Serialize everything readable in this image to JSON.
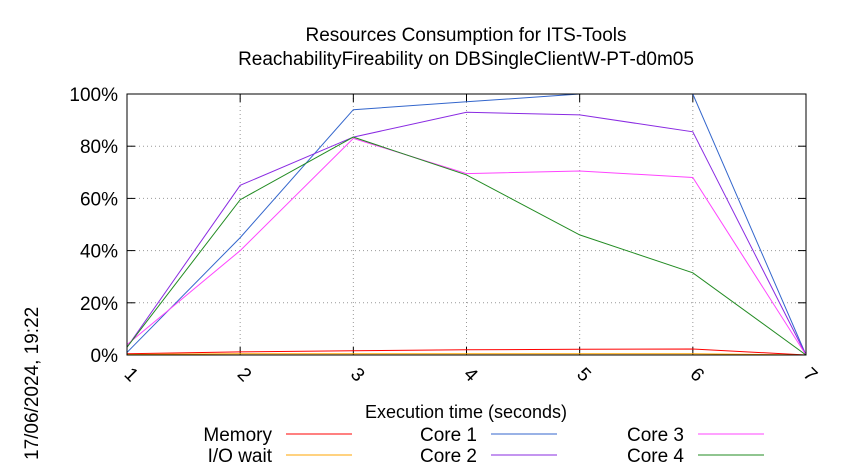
{
  "chart_data": {
    "type": "line",
    "title": [
      "Resources Consumption for ITS-Tools",
      "ReachabilityFireability on DBSingleClientW-PT-d0m05"
    ],
    "xlabel": "Execution time (seconds)",
    "ylabel": "",
    "timestamp": "17/06/2024, 19:22",
    "x": [
      1,
      2,
      3,
      4,
      5,
      6,
      7
    ],
    "xlim": [
      1,
      7
    ],
    "ylim": [
      0,
      100
    ],
    "x_ticks": [
      "1",
      "2",
      "3",
      "4",
      "5",
      "6",
      "7"
    ],
    "y_ticks": [
      {
        "value": 0,
        "label": "0%"
      },
      {
        "value": 20,
        "label": "20%"
      },
      {
        "value": 40,
        "label": "40%"
      },
      {
        "value": 60,
        "label": "60%"
      },
      {
        "value": 80,
        "label": "80%"
      },
      {
        "value": 100,
        "label": "100%"
      }
    ],
    "grid": true,
    "legend_position": "bottom",
    "series": [
      {
        "name": "Memory",
        "color": "#ff0000",
        "values": [
          0.5,
          1.2,
          1.6,
          2.0,
          2.2,
          2.3,
          0.0
        ]
      },
      {
        "name": "I/O wait",
        "color": "#ffa500",
        "values": [
          0.2,
          0.5,
          0.5,
          0.5,
          0.5,
          0.5,
          0.0
        ]
      },
      {
        "name": "Core 1",
        "color": "#3366cc",
        "values": [
          1.0,
          45.0,
          94.0,
          97.0,
          100.0,
          100.0,
          0.0
        ]
      },
      {
        "name": "Core 2",
        "color": "#8a2be2",
        "values": [
          3.0,
          65.0,
          83.5,
          93.0,
          92.0,
          85.5,
          0.0
        ]
      },
      {
        "name": "Core 3",
        "color": "#ff44ff",
        "values": [
          4.0,
          40.0,
          83.0,
          69.5,
          70.5,
          68.0,
          0.0
        ]
      },
      {
        "name": "Core 4",
        "color": "#228b22",
        "values": [
          3.0,
          59.5,
          83.5,
          69.0,
          46.0,
          31.5,
          0.0
        ]
      }
    ]
  }
}
